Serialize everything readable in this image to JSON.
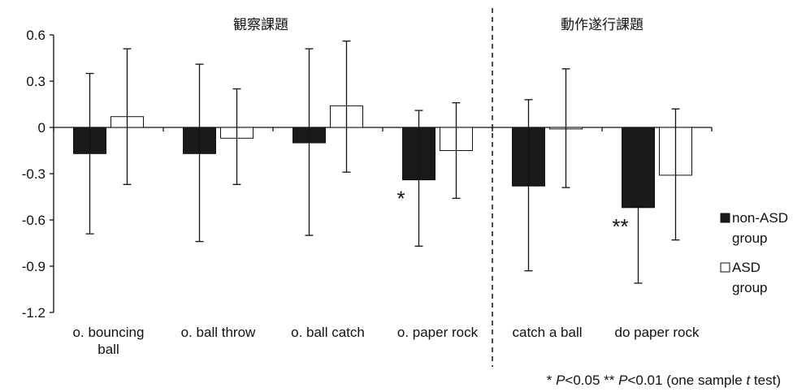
{
  "chart_data": {
    "type": "bar",
    "section_labels": [
      "観察課題",
      "動作遂行課題"
    ],
    "categories": [
      [
        "o. bouncing",
        "ball"
      ],
      [
        "o. ball throw"
      ],
      [
        "o. ball catch"
      ],
      [
        "o. paper rock"
      ],
      [
        "catch a ball"
      ],
      [
        "do paper rock"
      ]
    ],
    "ylim": [
      -1.2,
      0.6
    ],
    "yticks": [
      "0.6",
      "0.3",
      "0",
      "-0.3",
      "-0.6",
      "-0.9",
      "-1.2"
    ],
    "ytick_values": [
      0.6,
      0.3,
      0,
      -0.3,
      -0.6,
      -0.9,
      -1.2
    ],
    "series": [
      {
        "name": "non-ASD group",
        "color": "#1a1a1a",
        "values": [
          -0.17,
          -0.17,
          -0.1,
          -0.34,
          -0.38,
          -0.52
        ],
        "err_high": [
          0.35,
          0.41,
          0.51,
          0.11,
          0.18,
          -0.51
        ],
        "err_low": [
          -0.69,
          -0.74,
          -0.7,
          -0.77,
          -0.93,
          -1.01
        ]
      },
      {
        "name": "ASD group",
        "color": "#ffffff",
        "values": [
          0.07,
          -0.07,
          0.14,
          -0.15,
          -0.01,
          -0.31
        ],
        "err_high": [
          0.51,
          0.25,
          0.56,
          0.16,
          0.38,
          0.12
        ],
        "err_low": [
          -0.37,
          -0.37,
          -0.29,
          -0.46,
          -0.39,
          -0.73
        ]
      }
    ],
    "significance": [
      {
        "category_index": 3,
        "mark": "*"
      },
      {
        "category_index": 5,
        "mark": "**"
      }
    ],
    "legend": {
      "placement": "right",
      "entries": [
        {
          "line1": "non-ASD",
          "line2": "group"
        },
        {
          "line1": "ASD",
          "line2": "group"
        }
      ]
    },
    "footnote": {
      "star1": "* ",
      "p1": "P",
      "val1": "<0.05  ** ",
      "p2": "P",
      "val2": "<0.01  (one sample ",
      "t": "t",
      "end": " test)"
    },
    "grid": false
  }
}
